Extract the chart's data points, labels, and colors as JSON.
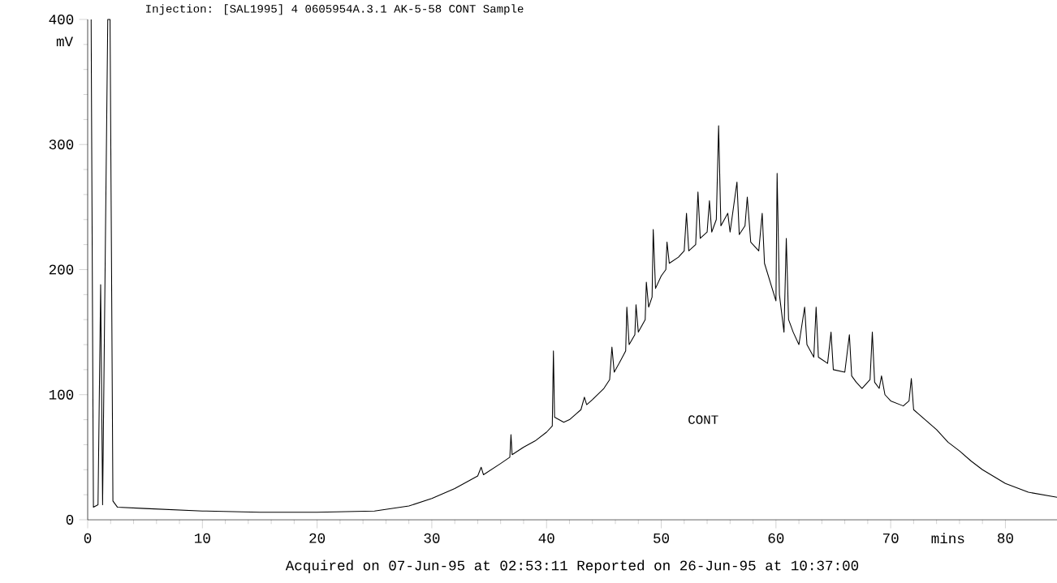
{
  "chart_data": {
    "type": "line",
    "title": "Injection:  [SAL1995] 4 0605954A.3.1  AK-5-58  CONT  Sample",
    "xlabel": "mins",
    "ylabel": "mV",
    "annotations": [
      "Acquired on 07-Jun-95 at 02:53:11   Reported on 26-Jun-95 at 10:37:00",
      "CONT"
    ],
    "xlim": [
      0,
      84.5
    ],
    "ylim": [
      0,
      400
    ],
    "xticks": [
      0,
      10,
      20,
      30,
      40,
      50,
      60,
      70,
      80
    ],
    "yticks": [
      0,
      100,
      200,
      300,
      400
    ],
    "marker": "none",
    "line_style": "solid",
    "series": [
      {
        "color": "#000000",
        "x": [
          0.3,
          0.5,
          0.9,
          1.13,
          1.3,
          1.75,
          1.95,
          2.2,
          2.6,
          5,
          10,
          15,
          20,
          25,
          28,
          30,
          32,
          34,
          34.3,
          34.5,
          36,
          36.8,
          36.9,
          37.0,
          38,
          39,
          40,
          40.5,
          40.6,
          40.7,
          41.5,
          42,
          43,
          43.3,
          43.5,
          44,
          45,
          45.5,
          45.7,
          45.9,
          46.5,
          46.9,
          47.0,
          47.2,
          47.7,
          47.8,
          48,
          48.6,
          48.7,
          48.9,
          49.2,
          49.3,
          49.5,
          50,
          50.4,
          50.5,
          50.7,
          51.5,
          52,
          52.2,
          52.4,
          53,
          53.2,
          53.4,
          54,
          54.2,
          54.4,
          54.8,
          55.0,
          55.2,
          55.8,
          56,
          56.6,
          56.8,
          57.3,
          57.5,
          57.8,
          58.5,
          58.8,
          59,
          59.5,
          60,
          60.1,
          60.3,
          60.7,
          60.9,
          61.1,
          61.5,
          62,
          62.5,
          62.7,
          63.3,
          63.5,
          63.7,
          64.5,
          64.8,
          65,
          66,
          66.4,
          66.6,
          67,
          67.5,
          68.2,
          68.4,
          68.6,
          69,
          69.2,
          69.5,
          70,
          71.1,
          71.6,
          71.8,
          72,
          73,
          74,
          75,
          76,
          77,
          78,
          80,
          82,
          84.5
        ],
        "values": [
          400,
          10,
          12,
          188,
          12,
          400,
          400,
          15,
          10,
          9,
          7,
          6,
          6,
          7,
          11,
          17,
          25,
          35,
          42,
          36,
          45,
          50,
          68,
          52,
          58,
          63,
          70,
          75,
          135,
          82,
          78,
          80,
          88,
          98,
          92,
          96,
          105,
          112,
          138,
          118,
          128,
          135,
          170,
          140,
          148,
          172,
          150,
          160,
          190,
          170,
          178,
          232,
          185,
          195,
          200,
          222,
          205,
          210,
          215,
          245,
          215,
          220,
          262,
          225,
          230,
          255,
          230,
          240,
          315,
          235,
          245,
          230,
          270,
          228,
          235,
          258,
          222,
          215,
          245,
          205,
          190,
          175,
          277,
          180,
          150,
          225,
          160,
          150,
          140,
          170,
          140,
          130,
          170,
          130,
          125,
          150,
          120,
          118,
          148,
          115,
          110,
          105,
          112,
          150,
          110,
          105,
          115,
          100,
          95,
          91,
          95,
          113,
          88,
          80,
          72,
          62,
          55,
          47,
          40,
          29,
          22,
          18
        ]
      }
    ]
  }
}
